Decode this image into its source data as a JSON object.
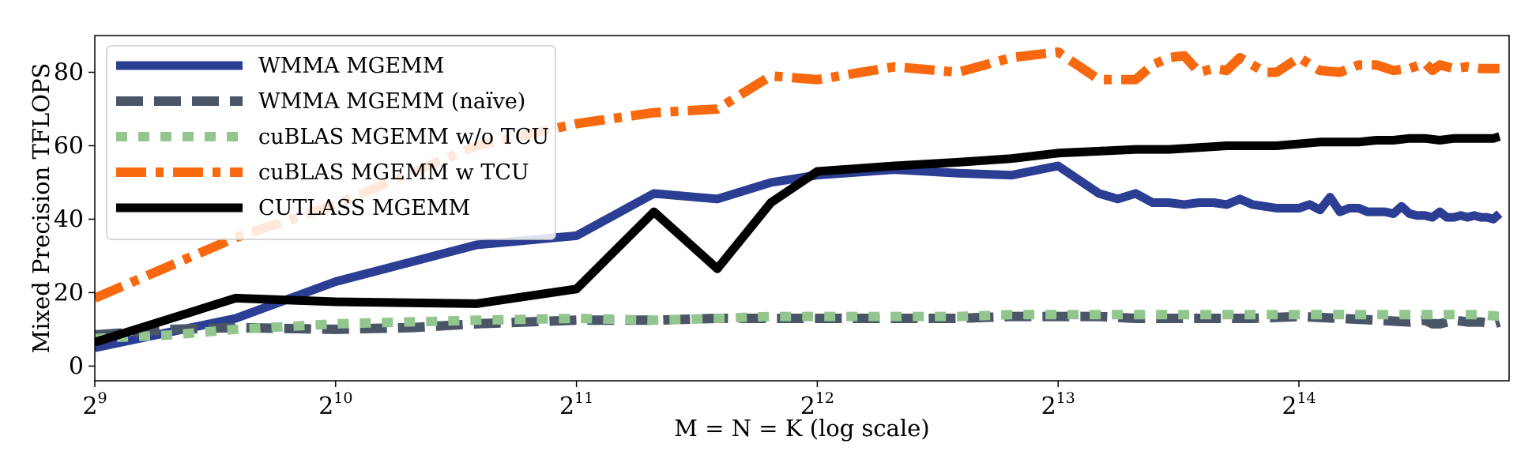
{
  "chart_data": {
    "type": "line",
    "xlabel": "M = N = K (log scale)",
    "ylabel": "Mixed Precision TFLOPS",
    "xscale": "log2",
    "xlim": [
      512,
      30000
    ],
    "ylim": [
      -4,
      90
    ],
    "x_ticks": [
      {
        "value": 512,
        "base": "2",
        "exp": "9"
      },
      {
        "value": 1024,
        "base": "2",
        "exp": "10"
      },
      {
        "value": 2048,
        "base": "2",
        "exp": "11"
      },
      {
        "value": 4096,
        "base": "2",
        "exp": "12"
      },
      {
        "value": 8192,
        "base": "2",
        "exp": "13"
      },
      {
        "value": 16384,
        "base": "2",
        "exp": "14"
      }
    ],
    "y_ticks": [
      0,
      20,
      40,
      60,
      80
    ],
    "grid": false,
    "legend_position": "top-left",
    "series": [
      {
        "name": "WMMA MGEMM",
        "color": "#2b3e93",
        "style": "solid",
        "points": [
          [
            512,
            5
          ],
          [
            768,
            13
          ],
          [
            1024,
            23
          ],
          [
            1536,
            33
          ],
          [
            2048,
            35.5
          ],
          [
            2560,
            47
          ],
          [
            3072,
            45.5
          ],
          [
            3584,
            50
          ],
          [
            4096,
            52
          ],
          [
            5120,
            53.5
          ],
          [
            6144,
            52.5
          ],
          [
            7168,
            52
          ],
          [
            8192,
            54.5
          ],
          [
            9216,
            47
          ],
          [
            9728,
            45.5
          ],
          [
            10240,
            47
          ],
          [
            10752,
            44.5
          ],
          [
            11264,
            44.5
          ],
          [
            11776,
            44
          ],
          [
            12288,
            44.5
          ],
          [
            12800,
            44.5
          ],
          [
            13312,
            44
          ],
          [
            13824,
            45.5
          ],
          [
            14336,
            44
          ],
          [
            14848,
            43.5
          ],
          [
            15360,
            43
          ],
          [
            15872,
            43
          ],
          [
            16384,
            43
          ],
          [
            16896,
            44
          ],
          [
            17408,
            42.5
          ],
          [
            17920,
            46
          ],
          [
            18432,
            42
          ],
          [
            18944,
            43
          ],
          [
            19456,
            43
          ],
          [
            19968,
            42
          ],
          [
            20480,
            42
          ],
          [
            20992,
            42
          ],
          [
            21504,
            41.5
          ],
          [
            22016,
            43.5
          ],
          [
            22528,
            41.5
          ],
          [
            23040,
            41
          ],
          [
            23552,
            41
          ],
          [
            24064,
            40.5
          ],
          [
            24576,
            42
          ],
          [
            25088,
            40.5
          ],
          [
            25600,
            40.5
          ],
          [
            26112,
            41
          ],
          [
            26624,
            40.5
          ],
          [
            27136,
            41
          ],
          [
            27648,
            40.5
          ],
          [
            28160,
            40.5
          ],
          [
            28672,
            40
          ],
          [
            29184,
            41.5
          ]
        ]
      },
      {
        "name": "WMMA MGEMM (naïve)",
        "color": "#4a5568",
        "style": "dashed",
        "points": [
          [
            512,
            8.5
          ],
          [
            640,
            10
          ],
          [
            768,
            10.5
          ],
          [
            1024,
            10
          ],
          [
            1280,
            10.5
          ],
          [
            1536,
            11.5
          ],
          [
            2048,
            12.5
          ],
          [
            2560,
            12.5
          ],
          [
            3072,
            13
          ],
          [
            3584,
            13
          ],
          [
            4096,
            13
          ],
          [
            5120,
            13
          ],
          [
            6144,
            13
          ],
          [
            7168,
            13.5
          ],
          [
            8192,
            13.5
          ],
          [
            9216,
            13.5
          ],
          [
            10240,
            13
          ],
          [
            12288,
            13
          ],
          [
            14336,
            13
          ],
          [
            16384,
            13.5
          ],
          [
            18432,
            13
          ],
          [
            20480,
            12.5
          ],
          [
            22528,
            12
          ],
          [
            23552,
            12.5
          ],
          [
            24064,
            11.5
          ],
          [
            24576,
            11.5
          ],
          [
            25600,
            12.5
          ],
          [
            26624,
            12
          ],
          [
            27648,
            12
          ],
          [
            28672,
            11.5
          ],
          [
            29184,
            12
          ]
        ]
      },
      {
        "name": "cuBLAS MGEMM w/o TCU",
        "color": "#93c58f",
        "style": "dotted",
        "points": [
          [
            512,
            7.5
          ],
          [
            640,
            8.5
          ],
          [
            768,
            10
          ],
          [
            1024,
            11.5
          ],
          [
            1536,
            12.5
          ],
          [
            2048,
            13
          ],
          [
            2560,
            12.5
          ],
          [
            3072,
            13
          ],
          [
            3584,
            13.5
          ],
          [
            4096,
            13.5
          ],
          [
            5120,
            13.5
          ],
          [
            6144,
            13.5
          ],
          [
            7168,
            14
          ],
          [
            8192,
            14
          ],
          [
            10240,
            14
          ],
          [
            12288,
            14
          ],
          [
            14336,
            14
          ],
          [
            16384,
            14
          ],
          [
            20480,
            14
          ],
          [
            24576,
            14
          ],
          [
            27648,
            14
          ],
          [
            29184,
            13.5
          ]
        ]
      },
      {
        "name": "cuBLAS MGEMM w TCU",
        "color": "#f8690f",
        "style": "dashdot",
        "points": [
          [
            512,
            18.5
          ],
          [
            768,
            35
          ],
          [
            1024,
            44
          ],
          [
            1536,
            60
          ],
          [
            2048,
            66
          ],
          [
            2560,
            69
          ],
          [
            3072,
            70
          ],
          [
            3584,
            79
          ],
          [
            4096,
            78
          ],
          [
            5120,
            81.5
          ],
          [
            6144,
            80
          ],
          [
            7168,
            84
          ],
          [
            8192,
            85.5
          ],
          [
            9216,
            78
          ],
          [
            10240,
            78
          ],
          [
            10752,
            82
          ],
          [
            11264,
            84
          ],
          [
            11776,
            84.5
          ],
          [
            12288,
            80
          ],
          [
            12800,
            81
          ],
          [
            13312,
            80.5
          ],
          [
            13824,
            84
          ],
          [
            14336,
            82
          ],
          [
            14848,
            80
          ],
          [
            15360,
            80
          ],
          [
            16384,
            84
          ],
          [
            17408,
            80.5
          ],
          [
            18432,
            80
          ],
          [
            19456,
            82
          ],
          [
            20480,
            82
          ],
          [
            21504,
            80.5
          ],
          [
            22528,
            81
          ],
          [
            23552,
            82.5
          ],
          [
            24064,
            80.5
          ],
          [
            24576,
            82
          ],
          [
            25600,
            81
          ],
          [
            26624,
            81.5
          ],
          [
            27648,
            81
          ],
          [
            28672,
            81
          ],
          [
            29184,
            81
          ]
        ]
      },
      {
        "name": "CUTLASS MGEMM",
        "color": "#000000",
        "style": "solid",
        "points": [
          [
            512,
            6.5
          ],
          [
            768,
            18.5
          ],
          [
            1024,
            17.5
          ],
          [
            1536,
            17
          ],
          [
            2048,
            21
          ],
          [
            2560,
            42
          ],
          [
            3072,
            26.5
          ],
          [
            3584,
            44.5
          ],
          [
            4096,
            53
          ],
          [
            5120,
            54.5
          ],
          [
            6144,
            55.5
          ],
          [
            7168,
            56.5
          ],
          [
            8192,
            58
          ],
          [
            9216,
            58.5
          ],
          [
            10240,
            59
          ],
          [
            11264,
            59
          ],
          [
            12288,
            59.5
          ],
          [
            13312,
            60
          ],
          [
            14336,
            60
          ],
          [
            15360,
            60
          ],
          [
            16384,
            60.5
          ],
          [
            17408,
            61
          ],
          [
            18432,
            61
          ],
          [
            19456,
            61
          ],
          [
            20480,
            61.5
          ],
          [
            21504,
            61.5
          ],
          [
            22528,
            62
          ],
          [
            23552,
            62
          ],
          [
            24576,
            61.5
          ],
          [
            25600,
            62
          ],
          [
            26624,
            62
          ],
          [
            27648,
            62
          ],
          [
            28672,
            62
          ],
          [
            29184,
            62.5
          ]
        ]
      }
    ]
  }
}
